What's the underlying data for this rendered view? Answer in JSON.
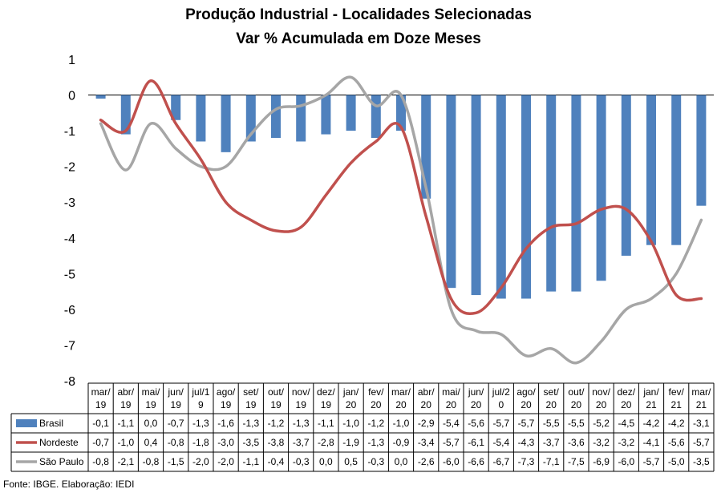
{
  "chart_data": {
    "type": "bar",
    "title": "Produção Industrial - Localidades Selecionadas",
    "subtitle": "Var % Acumulada em Doze Meses",
    "categories": [
      [
        "mar/",
        "19"
      ],
      [
        "abr/",
        "19"
      ],
      [
        "mai/",
        "19"
      ],
      [
        "jun/",
        "19"
      ],
      [
        "jul/1",
        "9"
      ],
      [
        "ago/",
        "19"
      ],
      [
        "set/",
        "19"
      ],
      [
        "out/",
        "19"
      ],
      [
        "nov/",
        "19"
      ],
      [
        "dez/",
        "19"
      ],
      [
        "jan/",
        "20"
      ],
      [
        "fev/",
        "20"
      ],
      [
        "mar/",
        "20"
      ],
      [
        "abr/",
        "20"
      ],
      [
        "mai/",
        "20"
      ],
      [
        "jun/",
        "20"
      ],
      [
        "jul/2",
        "0"
      ],
      [
        "ago/",
        "20"
      ],
      [
        "set/",
        "20"
      ],
      [
        "out/",
        "20"
      ],
      [
        "nov/",
        "20"
      ],
      [
        "dez/",
        "20"
      ],
      [
        "jan/",
        "21"
      ],
      [
        "fev/",
        "21"
      ],
      [
        "mar/",
        "21"
      ]
    ],
    "series": [
      {
        "name": "Brasil",
        "render": "bar",
        "color": "#4F81BD",
        "values": [
          -0.1,
          -1.1,
          0.0,
          -0.7,
          -1.3,
          -1.6,
          -1.3,
          -1.2,
          -1.3,
          -1.1,
          -1.0,
          -1.2,
          -1.0,
          -2.9,
          -5.4,
          -5.6,
          -5.7,
          -5.7,
          -5.5,
          -5.5,
          -5.2,
          -4.5,
          -4.2,
          -4.2,
          -3.1
        ],
        "labels": [
          "-0,1",
          "-1,1",
          "0,0",
          "-0,7",
          "-1,3",
          "-1,6",
          "-1,3",
          "-1,2",
          "-1,3",
          "-1,1",
          "-1,0",
          "-1,2",
          "-1,0",
          "-2,9",
          "-5,4",
          "-5,6",
          "-5,7",
          "-5,7",
          "-5,5",
          "-5,5",
          "-5,2",
          "-4,5",
          "-4,2",
          "-4,2",
          "-3,1"
        ]
      },
      {
        "name": "Nordeste",
        "render": "line",
        "color": "#C0504D",
        "values": [
          -0.7,
          -1.0,
          0.4,
          -0.8,
          -1.8,
          -3.0,
          -3.5,
          -3.8,
          -3.7,
          -2.8,
          -1.9,
          -1.3,
          -0.9,
          -3.4,
          -5.7,
          -6.1,
          -5.4,
          -4.3,
          -3.7,
          -3.6,
          -3.2,
          -3.2,
          -4.1,
          -5.6,
          -5.7
        ],
        "labels": [
          "-0,7",
          "-1,0",
          "0,4",
          "-0,8",
          "-1,8",
          "-3,0",
          "-3,5",
          "-3,8",
          "-3,7",
          "-2,8",
          "-1,9",
          "-1,3",
          "-0,9",
          "-3,4",
          "-5,7",
          "-6,1",
          "-5,4",
          "-4,3",
          "-3,7",
          "-3,6",
          "-3,2",
          "-3,2",
          "-4,1",
          "-5,6",
          "-5,7"
        ]
      },
      {
        "name": "São Paulo",
        "render": "line",
        "color": "#A6A6A6",
        "values": [
          -0.8,
          -2.1,
          -0.8,
          -1.5,
          -2.0,
          -2.0,
          -1.1,
          -0.4,
          -0.3,
          0.0,
          0.5,
          -0.3,
          0.0,
          -2.6,
          -6.0,
          -6.6,
          -6.7,
          -7.3,
          -7.1,
          -7.5,
          -6.9,
          -6.0,
          -5.7,
          -5.0,
          -3.5
        ],
        "labels": [
          "-0,8",
          "-2,1",
          "-0,8",
          "-1,5",
          "-2,0",
          "-2,0",
          "-1,1",
          "-0,4",
          "-0,3",
          "0,0",
          "0,5",
          "-0,3",
          "0,0",
          "-2,6",
          "-6,0",
          "-6,6",
          "-6,7",
          "-7,3",
          "-7,1",
          "-7,5",
          "-6,9",
          "-6,0",
          "-5,7",
          "-5,0",
          "-3,5"
        ]
      }
    ],
    "yticks": [
      1,
      0,
      -1,
      -2,
      -3,
      -4,
      -5,
      -6,
      -7,
      -8
    ],
    "ylim": [
      -8,
      1
    ],
    "grid": false,
    "legend": "data-table"
  },
  "footer": {
    "source": "Fonte: IBGE. Elaboração: IEDI"
  }
}
